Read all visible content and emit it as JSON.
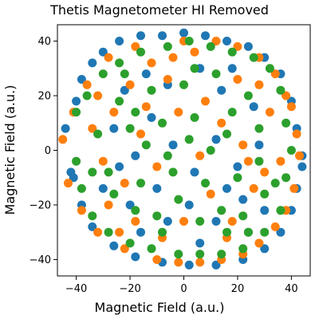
{
  "chart_data": {
    "type": "scatter",
    "title": "Thetis Magnetometer HI Removed",
    "xlabel": "Magnetic Field (a.u.)",
    "ylabel": "Magnetic Field (a.u.)",
    "xlim": [
      -47,
      47
    ],
    "ylim": [
      -46,
      46
    ],
    "xticks": [
      -40,
      -20,
      0,
      20,
      40
    ],
    "yticks": [
      -40,
      -20,
      0,
      20,
      40
    ],
    "grid": false,
    "legend": "none",
    "data_shape": "roughly circular sphere projection of radius about 42 centered at origin",
    "series": [
      {
        "color": "#1f77b4",
        "points": [
          [
            -44,
            8
          ],
          [
            -42,
            -8
          ],
          [
            -40,
            18
          ],
          [
            -38,
            26
          ],
          [
            -34,
            32
          ],
          [
            -30,
            36
          ],
          [
            -24,
            40
          ],
          [
            -16,
            42
          ],
          [
            -8,
            42
          ],
          [
            0,
            43
          ],
          [
            8,
            42
          ],
          [
            16,
            40
          ],
          [
            24,
            38
          ],
          [
            30,
            34
          ],
          [
            36,
            28
          ],
          [
            40,
            18
          ],
          [
            42,
            8
          ],
          [
            44,
            -2
          ],
          [
            44,
            -6
          ],
          [
            42,
            -14
          ],
          [
            40,
            -22
          ],
          [
            36,
            -30
          ],
          [
            30,
            -36
          ],
          [
            22,
            -40
          ],
          [
            12,
            -42
          ],
          [
            2,
            -42
          ],
          [
            -8,
            -41
          ],
          [
            -18,
            -39
          ],
          [
            -26,
            -35
          ],
          [
            -34,
            -28
          ],
          [
            -38,
            -20
          ],
          [
            -41,
            -10
          ],
          [
            -22,
            22
          ],
          [
            -14,
            28
          ],
          [
            -6,
            24
          ],
          [
            6,
            30
          ],
          [
            14,
            22
          ],
          [
            -26,
            8
          ],
          [
            -18,
            -2
          ],
          [
            -12,
            12
          ],
          [
            -4,
            2
          ],
          [
            4,
            -8
          ],
          [
            12,
            4
          ],
          [
            20,
            -6
          ],
          [
            28,
            2
          ],
          [
            -30,
            -14
          ],
          [
            -20,
            -20
          ],
          [
            -10,
            -14
          ],
          [
            2,
            -20
          ],
          [
            12,
            -26
          ],
          [
            22,
            -18
          ],
          [
            30,
            -22
          ],
          [
            -16,
            -30
          ],
          [
            6,
            -34
          ],
          [
            18,
            30
          ],
          [
            26,
            16
          ],
          [
            -24,
            -6
          ],
          [
            16,
            -14
          ],
          [
            -6,
            -26
          ],
          [
            24,
            -30
          ]
        ]
      },
      {
        "color": "#ff7f0e",
        "points": [
          [
            -45,
            4
          ],
          [
            -43,
            -12
          ],
          [
            -41,
            14
          ],
          [
            -38,
            -22
          ],
          [
            -36,
            24
          ],
          [
            -32,
            -30
          ],
          [
            -28,
            34
          ],
          [
            -22,
            -36
          ],
          [
            -18,
            38
          ],
          [
            -10,
            -40
          ],
          [
            -2,
            -41
          ],
          [
            6,
            -41
          ],
          [
            14,
            -40
          ],
          [
            22,
            -38
          ],
          [
            28,
            -34
          ],
          [
            34,
            -28
          ],
          [
            38,
            -22
          ],
          [
            41,
            -14
          ],
          [
            43,
            -2
          ],
          [
            42,
            6
          ],
          [
            40,
            16
          ],
          [
            38,
            20
          ],
          [
            34,
            28
          ],
          [
            28,
            34
          ],
          [
            20,
            38
          ],
          [
            12,
            40
          ],
          [
            0,
            40
          ],
          [
            -34,
            8
          ],
          [
            -30,
            -4
          ],
          [
            -26,
            14
          ],
          [
            -20,
            24
          ],
          [
            -12,
            32
          ],
          [
            -4,
            34
          ],
          [
            4,
            36
          ],
          [
            -28,
            -20
          ],
          [
            -22,
            -12
          ],
          [
            -16,
            6
          ],
          [
            -10,
            -6
          ],
          [
            -2,
            14
          ],
          [
            6,
            -2
          ],
          [
            14,
            10
          ],
          [
            22,
            2
          ],
          [
            30,
            -8
          ],
          [
            -18,
            -26
          ],
          [
            -8,
            -32
          ],
          [
            10,
            -16
          ],
          [
            18,
            -26
          ],
          [
            26,
            -14
          ],
          [
            32,
            14
          ],
          [
            20,
            26
          ],
          [
            8,
            18
          ],
          [
            -6,
            26
          ],
          [
            -14,
            16
          ],
          [
            24,
            -4
          ],
          [
            -24,
            -30
          ],
          [
            0,
            -26
          ],
          [
            16,
            -32
          ],
          [
            36,
            -4
          ],
          [
            28,
            24
          ],
          [
            -32,
            20
          ]
        ]
      },
      {
        "color": "#2ca02c",
        "points": [
          [
            -40,
            14
          ],
          [
            -40,
            -4
          ],
          [
            -38,
            -14
          ],
          [
            -36,
            20
          ],
          [
            -34,
            -24
          ],
          [
            -30,
            28
          ],
          [
            -28,
            -30
          ],
          [
            -24,
            32
          ],
          [
            -20,
            -34
          ],
          [
            -16,
            36
          ],
          [
            -12,
            -36
          ],
          [
            -6,
            38
          ],
          [
            -2,
            -38
          ],
          [
            2,
            40
          ],
          [
            6,
            -38
          ],
          [
            10,
            38
          ],
          [
            14,
            -38
          ],
          [
            18,
            36
          ],
          [
            22,
            -36
          ],
          [
            26,
            34
          ],
          [
            30,
            -30
          ],
          [
            32,
            30
          ],
          [
            36,
            -22
          ],
          [
            36,
            22
          ],
          [
            38,
            10
          ],
          [
            38,
            -10
          ],
          [
            40,
            0
          ],
          [
            -32,
            6
          ],
          [
            -28,
            -8
          ],
          [
            -24,
            18
          ],
          [
            -20,
            8
          ],
          [
            -16,
            -12
          ],
          [
            -12,
            22
          ],
          [
            -8,
            10
          ],
          [
            -4,
            -8
          ],
          [
            0,
            24
          ],
          [
            4,
            12
          ],
          [
            8,
            -12
          ],
          [
            12,
            28
          ],
          [
            16,
            6
          ],
          [
            20,
            -10
          ],
          [
            24,
            20
          ],
          [
            28,
            8
          ],
          [
            30,
            -16
          ],
          [
            -26,
            -16
          ],
          [
            -18,
            -22
          ],
          [
            -10,
            -24
          ],
          [
            -2,
            -18
          ],
          [
            6,
            -26
          ],
          [
            14,
            -22
          ],
          [
            22,
            -24
          ],
          [
            28,
            -4
          ],
          [
            -14,
            2
          ],
          [
            -6,
            -2
          ],
          [
            2,
            4
          ],
          [
            10,
            0
          ],
          [
            18,
            14
          ],
          [
            -22,
            28
          ],
          [
            4,
            30
          ],
          [
            34,
            -12
          ],
          [
            -34,
            -8
          ],
          [
            16,
            -30
          ],
          [
            -8,
            -30
          ],
          [
            24,
            -30
          ],
          [
            -18,
            14
          ]
        ]
      }
    ]
  }
}
